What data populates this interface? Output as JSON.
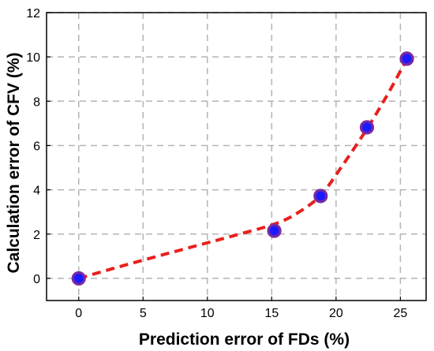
{
  "chart_data": {
    "type": "scatter",
    "title": "",
    "xlabel": "Prediction error of FDs (%)",
    "ylabel": "Calculation error of CFV (%)",
    "xlim": [
      -2.5,
      27
    ],
    "ylim": [
      -1,
      12
    ],
    "xticks": [
      0,
      5,
      10,
      15,
      20,
      25
    ],
    "yticks": [
      0,
      2,
      4,
      6,
      8,
      10,
      12
    ],
    "grid": true,
    "grid_style": "dashed",
    "series": [
      {
        "type": "scatter",
        "marker": "circle",
        "color": "#1a1aff",
        "edge_color": "#7a2aa0",
        "x": [
          0,
          15.2,
          18.8,
          22.4,
          25.5
        ],
        "y": [
          0,
          2.15,
          3.72,
          6.82,
          9.92
        ]
      },
      {
        "type": "line",
        "line_style": "dashed",
        "color": "#e8201c",
        "x": [
          0,
          3,
          6,
          9,
          12,
          15.2,
          17,
          18.8,
          20.5,
          22.4,
          24,
          25.5
        ],
        "y": [
          0,
          0.5,
          0.98,
          1.45,
          1.92,
          2.45,
          2.95,
          3.75,
          5.1,
          6.75,
          8.3,
          9.9
        ]
      }
    ]
  }
}
